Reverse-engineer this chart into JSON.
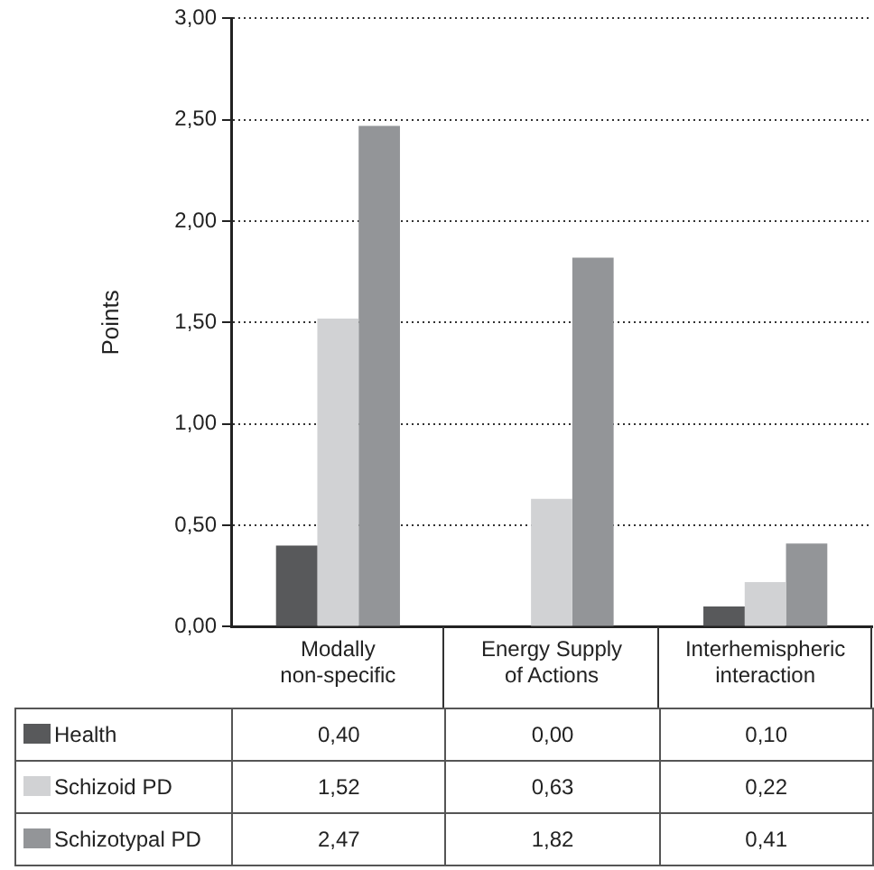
{
  "chart_data": {
    "type": "bar",
    "ylabel": "Points",
    "categories": [
      "Modally non-specific",
      "Energy Supply of Actions",
      "Interhemispheric interaction"
    ],
    "series": [
      {
        "name": "Health",
        "color": "#58595b",
        "values": [
          0.4,
          0.0,
          0.1
        ],
        "value_labels": [
          "0,40",
          "0,00",
          "0,10"
        ]
      },
      {
        "name": "Schizoid PD",
        "color": "#d1d2d4",
        "values": [
          1.52,
          0.63,
          0.22
        ],
        "value_labels": [
          "1,52",
          "0,63",
          "0,22"
        ]
      },
      {
        "name": "Schizotypal PD",
        "color": "#939598",
        "values": [
          2.47,
          1.82,
          0.41
        ],
        "value_labels": [
          "2,47",
          "1,82",
          "0,41"
        ]
      }
    ],
    "ylim": [
      0,
      3
    ],
    "yticks": [
      {
        "value": 0,
        "label": "0,00"
      },
      {
        "value": 0.5,
        "label": "0,50"
      },
      {
        "value": 1,
        "label": "1,00"
      },
      {
        "value": 1.5,
        "label": "1,50"
      },
      {
        "value": 2,
        "label": "2,00"
      },
      {
        "value": 2.5,
        "label": "2,50"
      },
      {
        "value": 3,
        "label": "3,00"
      }
    ],
    "grid": "y",
    "legend": "bottom"
  }
}
